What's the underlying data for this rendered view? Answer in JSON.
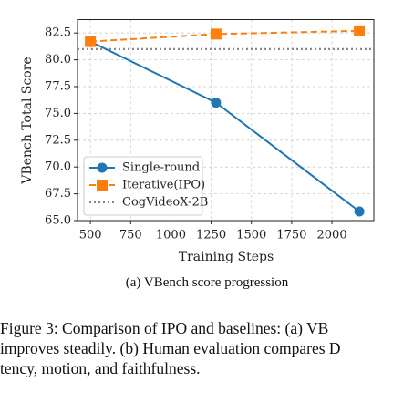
{
  "chart_data": {
    "type": "line",
    "x_label": "Training Steps",
    "y_label": "VBench Total Score",
    "x": [
      500,
      1280,
      2170
    ],
    "series": [
      {
        "name": "Single-round",
        "color": "#1f77b4",
        "linestyle": "solid",
        "marker": "circle",
        "values": [
          81.7,
          76.0,
          65.85
        ]
      },
      {
        "name": "Iterative(IPO)",
        "color": "#ff7f0e",
        "linestyle": "dashed",
        "marker": "square",
        "values": [
          81.7,
          82.4,
          82.7
        ]
      }
    ],
    "reference": {
      "name": "CogVideoX-2B",
      "color": "#888888",
      "linestyle": "dotted",
      "value": 81.0
    },
    "xlim": [
      420,
      2260
    ],
    "ylim": [
      65,
      83.75
    ],
    "xticks": [
      500,
      750,
      1000,
      1250,
      1500,
      1750,
      2000
    ],
    "yticks": [
      {
        "value": 65,
        "label": "65.0"
      },
      67.5,
      {
        "value": 70,
        "label": "70.0"
      },
      72.5,
      {
        "value": 75,
        "label": "75.0"
      },
      77.5,
      {
        "value": 80,
        "label": "80.0"
      },
      82.5
    ],
    "grid": true,
    "legend": "lower left"
  },
  "subcaption": "(a) VBench score progression",
  "caption_lines": [
    "Figure 3:  Comparison of IPO and baselines:  (a) VB",
    "improves steadily. (b) Human evaluation compares D",
    "tency, motion, and faithfulness."
  ]
}
